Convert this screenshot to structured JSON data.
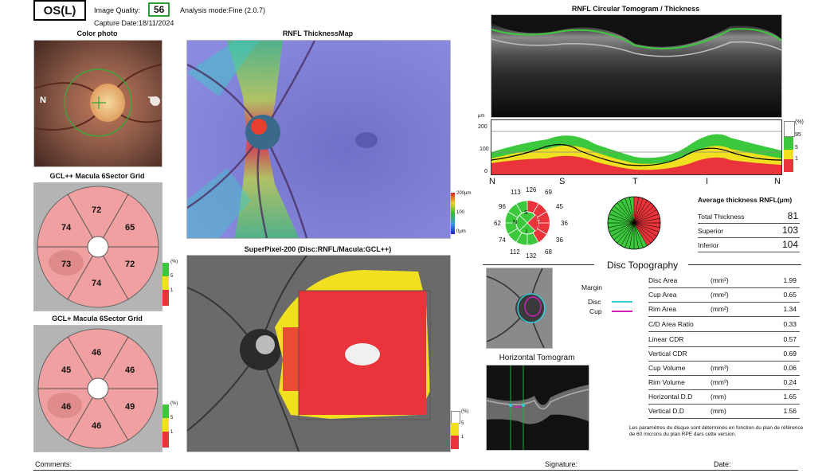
{
  "header": {
    "eye": "OS(L)",
    "image_quality_label": "Image Quality:",
    "image_quality_value": "56",
    "analysis_mode": "Analysis mode:Fine (2.0.7)",
    "capture_date": "Capture Date:18/11/2024"
  },
  "color_photo": {
    "title": "Color photo",
    "label_n": "N",
    "label_t": "T"
  },
  "gcl_pp": {
    "title": "GCL++ Macula 6Sector Grid",
    "values": {
      "top": "72",
      "upper_left": "74",
      "upper_right": "65",
      "lower_left": "73",
      "lower_right": "72",
      "bottom": "74"
    }
  },
  "gcl_p": {
    "title": "GCL+ Macula 6Sector Grid",
    "values": {
      "top": "46",
      "upper_left": "45",
      "upper_right": "46",
      "lower_left": "46",
      "lower_right": "49",
      "bottom": "46"
    }
  },
  "legend_small": {
    "pct": "(%)",
    "l5": "5",
    "l1": "1"
  },
  "rnfl_map": {
    "title": "RNFL ThicknessMap",
    "scale_top": "200μm",
    "scale_mid": "100",
    "scale_bot": "0μm"
  },
  "superpixel": {
    "title": "SuperPixel-200 (Disc:RNFL/Macula:GCL++)"
  },
  "tomogram": {
    "title": "RNFL Circular Tomogram / Thickness"
  },
  "tsnit": {
    "unit": "μm",
    "y200": "200",
    "y100": "100",
    "y0": "0",
    "x_labels": [
      "N",
      "S",
      "T",
      "I",
      "N"
    ],
    "legend": {
      "pct": "(%)",
      "l95": "95",
      "l5": "5",
      "l1": "1"
    }
  },
  "clock": {
    "values": {
      "c12": "126",
      "c11": "113",
      "c1": "69",
      "c10": "96",
      "c2": "45",
      "c9": "62",
      "c3": "36",
      "c8": "74",
      "c4": "36",
      "c7": "112",
      "c5": "68",
      "c6": "132"
    },
    "quad": {
      "s": "S",
      "n": "N",
      "t": "T",
      "i": "I"
    }
  },
  "average": {
    "title": "Average thickness RNFL(μm)",
    "rows": [
      {
        "label": "Total Thickness",
        "value": "81"
      },
      {
        "label": "Superior",
        "value": "103"
      },
      {
        "label": "Inferior",
        "value": "104"
      }
    ]
  },
  "disc_topo": {
    "title": "Disc Topography",
    "margin_label": "Margin",
    "disc_label": "Disc",
    "cup_label": "Cup",
    "disc_color": "#32c8d8",
    "cup_color": "#d020c0",
    "rows": [
      {
        "label": "Disc Area",
        "unit": "(mm²)",
        "value": "1.99"
      },
      {
        "label": "Cup Area",
        "unit": "(mm²)",
        "value": "0.65"
      },
      {
        "label": "Rim Area",
        "unit": "(mm²)",
        "value": "1.34"
      },
      {
        "label": "C/D Area Ratio",
        "unit": "",
        "value": "0.33"
      },
      {
        "label": "Linear CDR",
        "unit": "",
        "value": "0.57"
      },
      {
        "label": "Vertical CDR",
        "unit": "",
        "value": "0.69"
      },
      {
        "label": "Cup Volume",
        "unit": "(mm³)",
        "value": "0.06"
      },
      {
        "label": "Rim Volume",
        "unit": "(mm³)",
        "value": "0.24"
      },
      {
        "label": "Horizontal D.D",
        "unit": "(mm)",
        "value": "1.65"
      },
      {
        "label": "Vertical D.D",
        "unit": "(mm)",
        "value": "1.56"
      }
    ],
    "note": "Les paramètres du disque sont déterminés en fonction du plan de référence de 60 microns du plan RPE dars cette version."
  },
  "horizontal_tomogram": {
    "title": "Horizontal Tomogram"
  },
  "footer": {
    "comments": "Comments:",
    "signature": "Signature:",
    "date": "Date:"
  },
  "colors": {
    "red": "#e8343a",
    "yellow": "#f0e020",
    "green": "#3cc83c",
    "grid_fill": "#f0a0a0"
  }
}
